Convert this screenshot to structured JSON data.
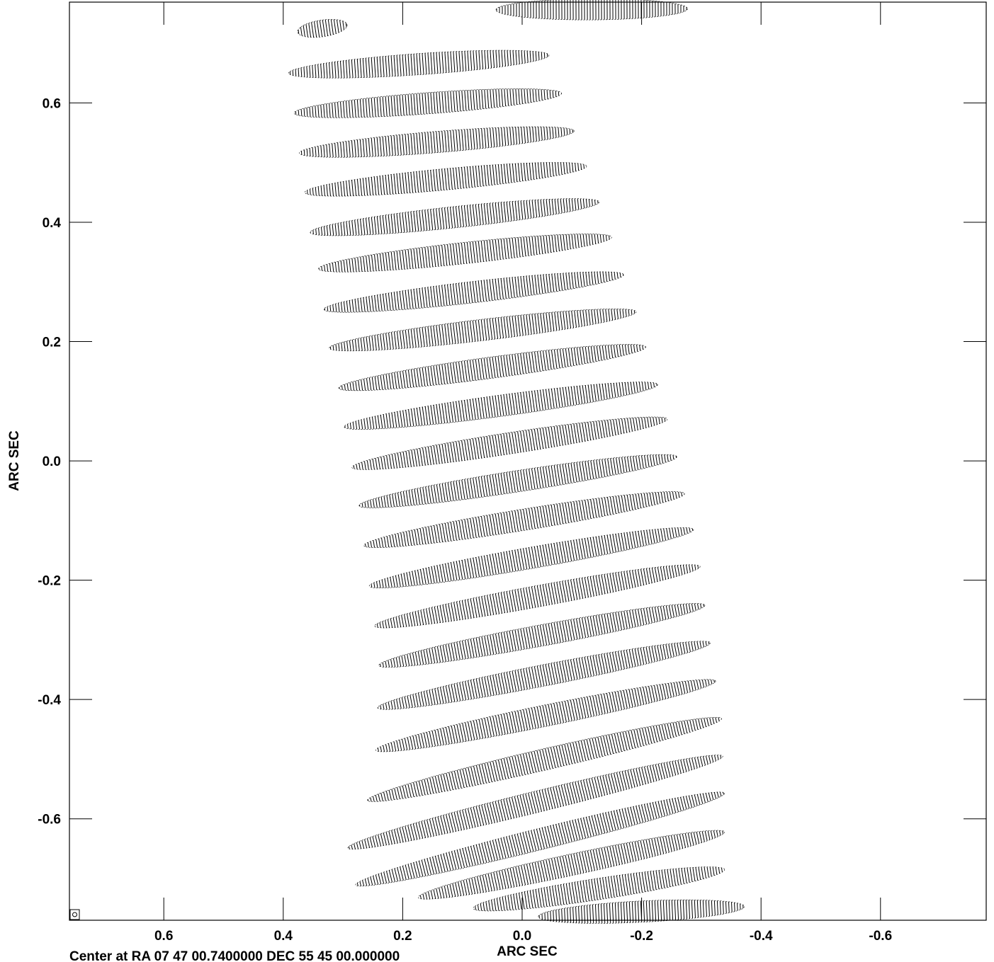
{
  "chart_data": {
    "type": "contour",
    "xlabel": "ARC SEC",
    "ylabel": "ARC SEC",
    "footer": "Center at RA 07 47 00.7400000  DEC 55 45 00.000000",
    "xlim": [
      0.758,
      -0.777
    ],
    "ylim": [
      -0.77,
      0.769
    ],
    "xticks": [
      0.6,
      0.4,
      0.2,
      {
        "value": 0,
        "label": "0.0"
      },
      -0.2,
      -0.4,
      -0.6
    ],
    "yticks": [
      -0.6,
      -0.4,
      -0.2,
      {
        "value": 0,
        "label": "0.0"
      },
      0.2,
      0.4,
      0.6
    ],
    "color": "#000000",
    "fringes": [
      [
        0.376,
        0.719,
        0.293,
        0.731
      ],
      [
        0.044,
        0.756,
        -0.277,
        0.758
      ],
      [
        0.391,
        0.65,
        -0.045,
        0.68
      ],
      [
        0.382,
        0.583,
        -0.066,
        0.616
      ],
      [
        0.373,
        0.516,
        -0.087,
        0.553
      ],
      [
        0.364,
        0.45,
        -0.108,
        0.494
      ],
      [
        0.355,
        0.383,
        -0.129,
        0.434
      ],
      [
        0.341,
        0.322,
        -0.15,
        0.375
      ],
      [
        0.332,
        0.254,
        -0.17,
        0.312
      ],
      [
        0.323,
        0.189,
        -0.191,
        0.25
      ],
      [
        0.307,
        0.122,
        -0.207,
        0.191
      ],
      [
        0.298,
        0.057,
        -0.227,
        0.128
      ],
      [
        0.285,
        -0.011,
        -0.243,
        0.07
      ],
      [
        0.273,
        -0.075,
        -0.259,
        0.007
      ],
      [
        0.265,
        -0.142,
        -0.272,
        -0.055
      ],
      [
        0.256,
        -0.21,
        -0.287,
        -0.115
      ],
      [
        0.247,
        -0.277,
        -0.298,
        -0.177
      ],
      [
        0.24,
        -0.343,
        -0.306,
        -0.242
      ],
      [
        0.242,
        -0.414,
        -0.315,
        -0.305
      ],
      [
        0.245,
        -0.485,
        -0.324,
        -0.369
      ],
      [
        0.259,
        -0.569,
        -0.334,
        -0.432
      ],
      [
        0.292,
        -0.649,
        -0.336,
        -0.495
      ],
      [
        0.279,
        -0.711,
        -0.339,
        -0.557
      ],
      [
        0.174,
        -0.732,
        -0.339,
        -0.622
      ],
      [
        0.082,
        -0.75,
        -0.339,
        -0.685
      ],
      [
        -0.027,
        -0.764,
        -0.372,
        -0.747
      ]
    ]
  }
}
